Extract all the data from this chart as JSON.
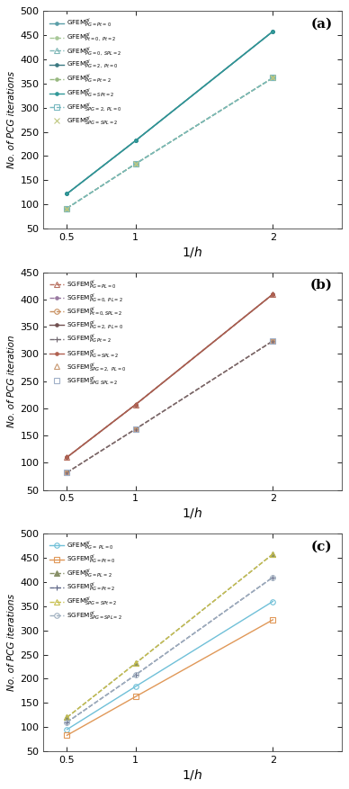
{
  "x": [
    0.5,
    1,
    2
  ],
  "subplot_a": {
    "panel_label": "(a)",
    "ylabel": "No. of PCG iterations",
    "xlabel": "$\\mathit{1/h}$",
    "ylim": [
      50,
      500
    ],
    "yticks": [
      50,
      100,
      150,
      200,
      250,
      300,
      350,
      400,
      450,
      500
    ],
    "lines": [
      {
        "label": "GFEM$^{gl}_{PG=Pt=0}$",
        "color": "#5a9ea8",
        "marker": ".",
        "ls": "-",
        "y": [
          122,
          232,
          458
        ],
        "ms": 5,
        "mfc": "#5a9ea8",
        "lw": 1.0
      },
      {
        "label": "GFEM$^{gl}_{Pt=0,\\ Pt=2}$",
        "color": "#a8c898",
        "marker": ".",
        "ls": "--",
        "y": [
          92,
          184,
          362
        ],
        "ms": 5,
        "mfc": "#a8c898",
        "lw": 1.0
      },
      {
        "label": "GFEM$^{gl}_{PG=0,\\ SPL=2}$",
        "color": "#80b8b8",
        "marker": "^",
        "ls": "--",
        "y": [
          92,
          184,
          362
        ],
        "ms": 4,
        "mfc": "none",
        "lw": 1.0
      },
      {
        "label": "GFEM$^{gl}_{PG=2,\\ Pt=0}$",
        "color": "#3a7880",
        "marker": ".",
        "ls": "-",
        "y": [
          122,
          232,
          458
        ],
        "ms": 5,
        "mfc": "#3a7880",
        "lw": 1.0
      },
      {
        "label": "GFEM$^{gl}_{PG=Pt=2}$",
        "color": "#98b880",
        "marker": ".",
        "ls": "--",
        "y": [
          92,
          184,
          362
        ],
        "ms": 5,
        "mfc": "#98b880",
        "lw": 1.0
      },
      {
        "label": "GFEM$^{gl}_{PG=SPt=2}$",
        "color": "#309898",
        "marker": ".",
        "ls": "-",
        "y": [
          122,
          232,
          458
        ],
        "ms": 5,
        "mfc": "#309898",
        "lw": 1.0
      },
      {
        "label": "GFEM$^{gl}_{SPG=2,\\ PL=0}$",
        "color": "#78b8c0",
        "marker": "s",
        "ls": "--",
        "y": [
          92,
          184,
          362
        ],
        "ms": 4,
        "mfc": "none",
        "lw": 1.0
      },
      {
        "label": "GFEM$^{gl}_{SPG=SPL=2}$",
        "color": "#c0c880",
        "marker": "x",
        "ls": "None",
        "y": [
          92,
          184,
          362
        ],
        "ms": 5,
        "mfc": "#c0c880",
        "lw": 1.0
      }
    ]
  },
  "subplot_b": {
    "panel_label": "(b)",
    "ylabel": "No. of PCG iteration",
    "xlabel": "$\\mathit{1/h}$",
    "ylim": [
      50,
      450
    ],
    "yticks": [
      50,
      100,
      150,
      200,
      250,
      300,
      350,
      400,
      450
    ],
    "lines": [
      {
        "label": "SGFEM$^{gl}_{PG=PL=0}$",
        "color": "#b87060",
        "marker": "^",
        "ls": "--",
        "y": [
          110,
          207,
          410
        ],
        "ms": 4,
        "mfc": "none",
        "lw": 1.0
      },
      {
        "label": "SGFEM$^{gl}_{PG=0,\\ PL=2}$",
        "color": "#9878a0",
        "marker": ".",
        "ls": "--",
        "y": [
          82,
          162,
          324
        ],
        "ms": 5,
        "mfc": "#9878a0",
        "lw": 1.0
      },
      {
        "label": "SGFEM$^{gl}_{Pt=0,SPL=2}$",
        "color": "#c89060",
        "marker": "o",
        "ls": "--",
        "y": [
          82,
          162,
          324
        ],
        "ms": 4,
        "mfc": "none",
        "lw": 1.0
      },
      {
        "label": "SGFEM$^{gl}_{PG=2,\\ PL=0}$",
        "color": "#705050",
        "marker": ".",
        "ls": "-",
        "y": [
          110,
          207,
          410
        ],
        "ms": 5,
        "mfc": "#705050",
        "lw": 1.0
      },
      {
        "label": "SGFEM$^{gl}_{PG\\ Pt=2}$",
        "color": "#706870",
        "marker": "+",
        "ls": "--",
        "y": [
          82,
          162,
          324
        ],
        "ms": 5,
        "mfc": "#706870",
        "lw": 1.0
      },
      {
        "label": "SGFEM$^{gl}_{PG=SPL=2}$",
        "color": "#b06050",
        "marker": ".",
        "ls": "-",
        "y": [
          110,
          207,
          410
        ],
        "ms": 5,
        "mfc": "#b06050",
        "lw": 1.0
      },
      {
        "label": "SGFEM$^{gl}_{SPG=2,\\ PL=0}$",
        "color": "#c89870",
        "marker": "^",
        "ls": "None",
        "y": [
          82,
          162,
          324
        ],
        "ms": 4,
        "mfc": "none",
        "lw": 1.0
      },
      {
        "label": "SGFEM$^{gl}_{SPG\\ SPL=2}$",
        "color": "#a0b0c8",
        "marker": "s",
        "ls": "None",
        "y": [
          82,
          162,
          324
        ],
        "ms": 4,
        "mfc": "none",
        "lw": 1.0
      }
    ]
  },
  "subplot_c": {
    "panel_label": "(c)",
    "ylabel": "No. of PCG iterations",
    "xlabel": "$\\mathit{1/h}$",
    "ylim": [
      50,
      500
    ],
    "yticks": [
      50,
      100,
      150,
      200,
      250,
      300,
      350,
      400,
      450,
      500
    ],
    "lines": [
      {
        "label": "GFEM$^{gl}_{PG=\\ PL=0}$",
        "color": "#70c0d8",
        "marker": "o",
        "ls": "-",
        "y": [
          95,
          184,
          360
        ],
        "ms": 4,
        "mfc": "none",
        "lw": 1.0
      },
      {
        "label": "SGFEM$^{gl}_{PG=Pt=0}$",
        "color": "#e09858",
        "marker": "s",
        "ls": "-",
        "y": [
          83,
          163,
          322
        ],
        "ms": 4,
        "mfc": "none",
        "lw": 1.0
      },
      {
        "label": "GFEM$^{gl}_{PG=PL=2}$",
        "color": "#889068",
        "marker": "^",
        "ls": "--",
        "y": [
          120,
          232,
          458
        ],
        "ms": 4,
        "mfc": "#889068",
        "lw": 1.0
      },
      {
        "label": "SGFEM$^{gl}_{PG=Pt=2}$",
        "color": "#606888",
        "marker": "+",
        "ls": "--",
        "y": [
          110,
          208,
          410
        ],
        "ms": 5,
        "mfc": "#606888",
        "lw": 1.0
      },
      {
        "label": "GFEM$^{gl}_{SPG=SPt=2}$",
        "color": "#c8c050",
        "marker": "^",
        "ls": "--",
        "y": [
          120,
          232,
          458
        ],
        "ms": 4,
        "mfc": "none",
        "lw": 1.0
      },
      {
        "label": "SGFEM$^{gl}_{SPG=SPL=2}$",
        "color": "#a0b0c0",
        "marker": "o",
        "ls": "--",
        "y": [
          110,
          208,
          410
        ],
        "ms": 4,
        "mfc": "none",
        "lw": 1.0
      }
    ]
  }
}
